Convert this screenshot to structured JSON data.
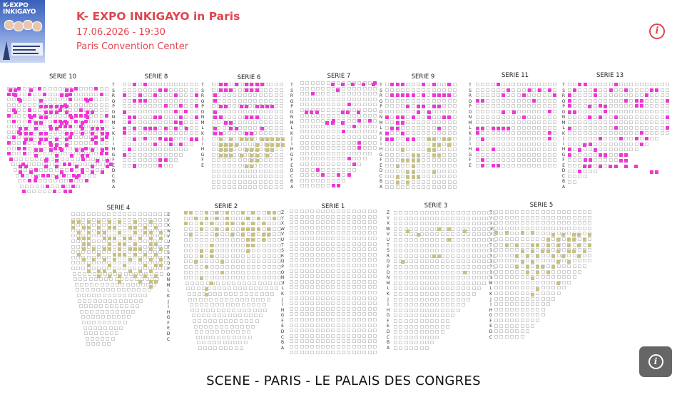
{
  "event": {
    "title": "K- EXPO INKIGAYO in Paris",
    "datetime": "17.06.2026 - 19:30",
    "venue": "Paris Convention Center",
    "poster": {
      "title_line1": "K-EXPO",
      "title_line2": "INKIGAYO"
    }
  },
  "info_icon": "info-icon",
  "help_button_icon": "info-icon",
  "stage_label": "SCENE - PARIS - LE PALAIS DES CONGRES",
  "colors": {
    "accent": "#e0454f",
    "seat_available_magenta": "#ee37d4",
    "seat_available_olive": "#c7c084",
    "seat_unavailable_border": "#cfcfcf",
    "fab_bg": "#666666"
  },
  "sections": {
    "serie10": {
      "label": "SERIE 10",
      "rows": [
        "T",
        "S",
        "R",
        "Q",
        "P",
        "O",
        "N",
        "M",
        "L",
        "K",
        "J",
        "I",
        "H",
        "G",
        "F",
        "E",
        "D",
        "C",
        "B",
        "A"
      ]
    },
    "serie8": {
      "label": "SERIE 8",
      "rows": [
        "T",
        "S",
        "R",
        "Q",
        "P",
        "O",
        "N",
        "M",
        "L",
        "K",
        "J",
        "I",
        "H",
        "G",
        "F",
        "E"
      ]
    },
    "serie6": {
      "label": "SERIE 6",
      "rows": [
        "T",
        "S",
        "R",
        "Q",
        "P",
        "O",
        "N",
        "M",
        "L",
        "K",
        "J",
        "I",
        "H",
        "G",
        "F",
        "E",
        "D",
        "C",
        "B",
        "A"
      ]
    },
    "serie7": {
      "label": "SERIE 7",
      "rows": [
        "T",
        "S",
        "R",
        "Q",
        "P",
        "O",
        "N",
        "M",
        "L",
        "K",
        "J",
        "I",
        "H",
        "G",
        "F",
        "E",
        "D",
        "C",
        "B",
        "A"
      ]
    },
    "serie9": {
      "label": "SERIE 9",
      "rows": [
        "T",
        "S",
        "R",
        "Q",
        "P",
        "O",
        "N",
        "M",
        "L",
        "K",
        "J",
        "I",
        "H",
        "G",
        "F",
        "E",
        "D",
        "C",
        "B",
        "A"
      ]
    },
    "serie11": {
      "label": "SERIE 11",
      "rows": [
        "T",
        "S",
        "R",
        "Q",
        "P",
        "O",
        "N",
        "M",
        "L",
        "K",
        "J",
        "I",
        "H",
        "G",
        "F",
        "E"
      ]
    },
    "serie13": {
      "label": "SERIE 13",
      "rows": [
        "T",
        "S",
        "R",
        "Q",
        "P",
        "O",
        "N",
        "M",
        "L",
        "K",
        "J",
        "I",
        "H",
        "G",
        "F",
        "E",
        "D",
        "C",
        "B",
        "A"
      ]
    },
    "serie4": {
      "label": "SERIE 4",
      "rows": [
        "Z",
        "Y",
        "X",
        "W",
        "V",
        "U",
        "T",
        "S",
        "R",
        "Q",
        "P",
        "O",
        "N",
        "M",
        "L",
        "K",
        "J",
        "I",
        "H",
        "G",
        "F",
        "E",
        "D",
        "C"
      ]
    },
    "serie2": {
      "label": "SERIE 2",
      "rows": [
        "Z",
        "Y",
        "X",
        "W",
        "V",
        "U",
        "T",
        "S",
        "R",
        "Q",
        "P",
        "O",
        "N",
        "M",
        "L",
        "K",
        "J",
        "I",
        "H",
        "G",
        "F",
        "E",
        "D",
        "C",
        "B",
        "A"
      ]
    },
    "serie1": {
      "label": "SERIE 1",
      "rows": []
    },
    "serie3": {
      "label": "SERIE 3",
      "rows": [
        "Z",
        "Y",
        "X",
        "W",
        "V",
        "U",
        "T",
        "S",
        "R",
        "Q",
        "P",
        "O",
        "N",
        "M",
        "L",
        "K",
        "J",
        "I",
        "H",
        "G",
        "F",
        "E",
        "D",
        "C",
        "B",
        "A"
      ]
    },
    "serie5": {
      "label": "SERIE 5",
      "rows": [
        "Z",
        "Y",
        "X",
        "W",
        "V",
        "U",
        "T",
        "S",
        "R",
        "Q",
        "P",
        "O",
        "N",
        "M",
        "L",
        "K",
        "J",
        "I",
        "H",
        "G",
        "F",
        "E",
        "D",
        "C"
      ]
    }
  }
}
